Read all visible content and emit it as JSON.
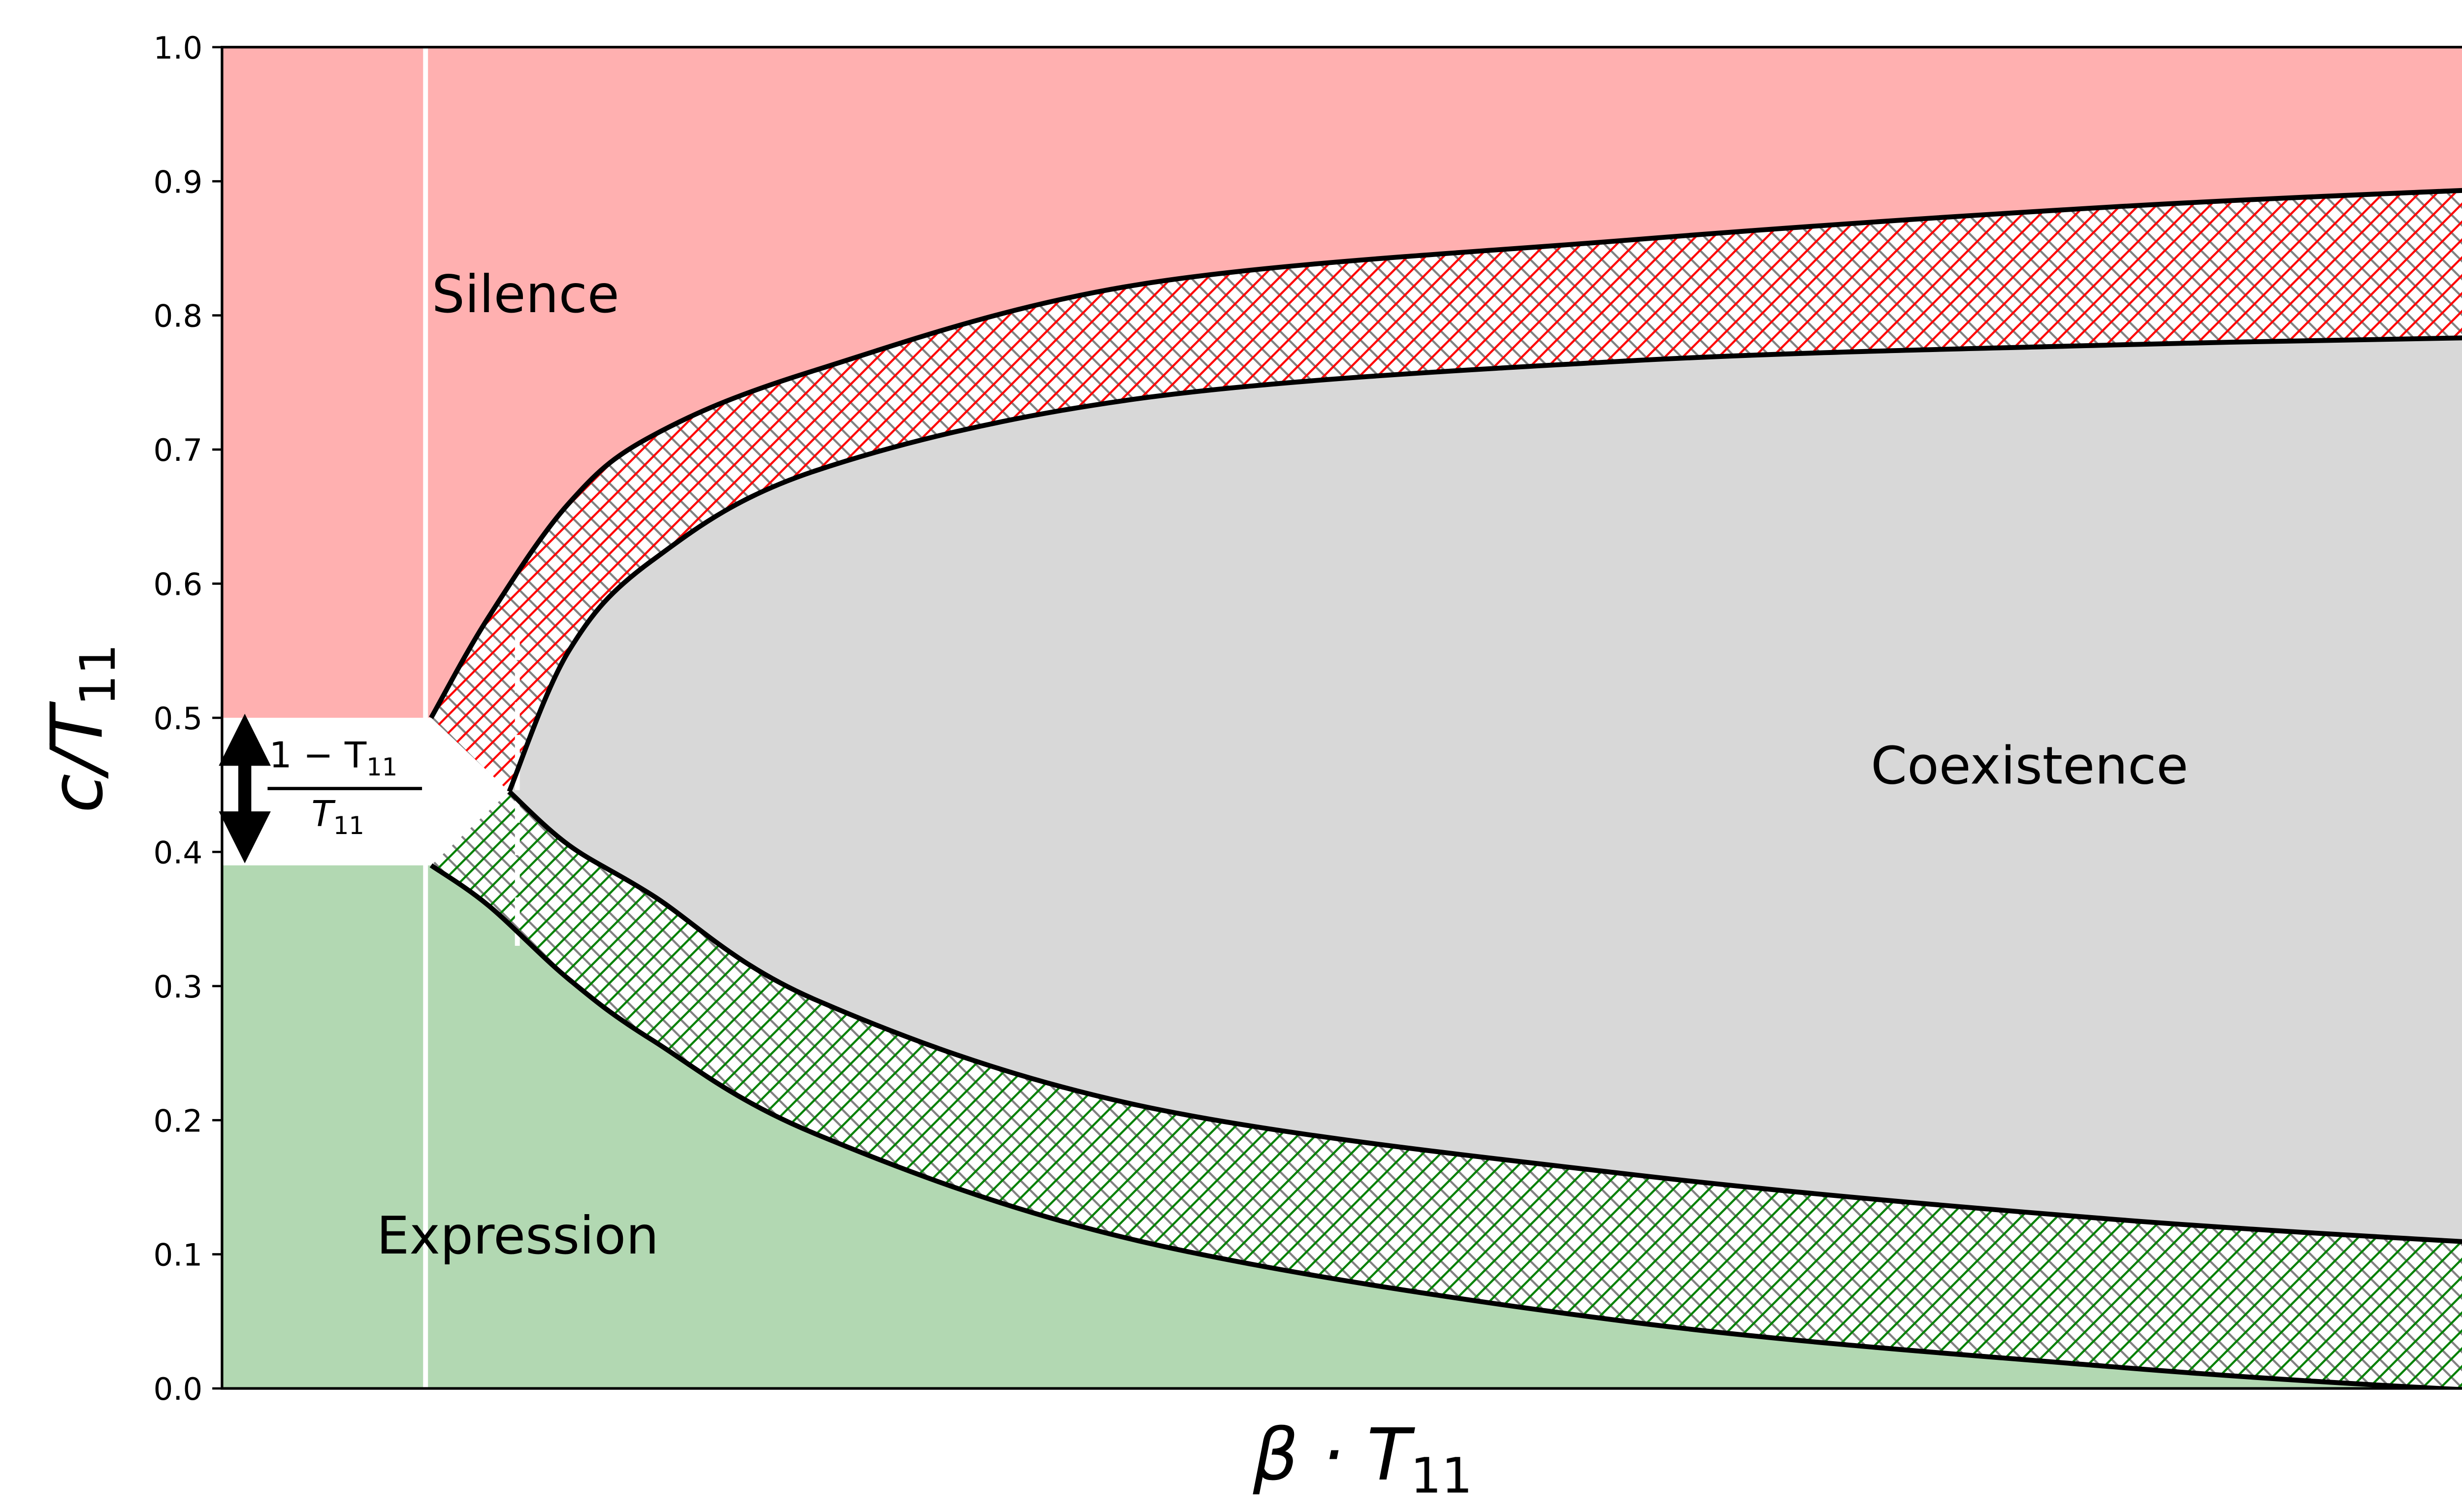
{
  "chart_data": {
    "type": "area",
    "title": "",
    "xlabel": "β · T",
    "xlabel_sub": "11",
    "ylabel": "c/T",
    "ylabel_sub": "11",
    "xlim": [
      0,
      1
    ],
    "ylim": [
      0,
      1
    ],
    "x_ticks_shown": false,
    "yticks": [
      "0.0",
      "0.1",
      "0.2",
      "0.3",
      "0.4",
      "0.5",
      "0.6",
      "0.7",
      "0.8",
      "0.9",
      "1.0"
    ],
    "grid": false,
    "colors": {
      "silence": "#ffb0b0",
      "expression": "#b2d8b2",
      "coexistence": "#d8d8d8",
      "hatch_upper": "#ff0000",
      "hatch_lower": "#008000",
      "hatch_common": "#808080",
      "boundary": "#000000"
    },
    "thresholds": {
      "silence_lower": 0.5,
      "expression_upper": 0.39,
      "threshold_x": 0.09
    },
    "curves": {
      "upper_outer": {
        "x": [
          0.091,
          0.116,
          0.151,
          0.187,
          0.258,
          0.399,
          0.611,
          0.824,
          1.0
        ],
        "y": [
          0.5,
          0.575,
          0.66,
          0.71,
          0.759,
          0.823,
          0.856,
          0.881,
          0.895
        ]
      },
      "upper_inner": {
        "x": [
          0.125,
          0.151,
          0.187,
          0.258,
          0.399,
          0.611,
          0.824,
          1.0
        ],
        "y": [
          0.445,
          0.55,
          0.617,
          0.684,
          0.738,
          0.766,
          0.778,
          0.784
        ]
      },
      "lower_inner": {
        "x": [
          0.125,
          0.151,
          0.187,
          0.258,
          0.399,
          0.611,
          0.824,
          1.0
        ],
        "y": [
          0.445,
          0.405,
          0.368,
          0.29,
          0.211,
          0.16,
          0.126,
          0.107
        ]
      },
      "lower_outer": {
        "x": [
          0.091,
          0.116,
          0.151,
          0.187,
          0.258,
          0.399,
          0.611,
          0.824,
          0.965,
          1.0
        ],
        "y": [
          0.39,
          0.36,
          0.305,
          0.26,
          0.19,
          0.11,
          0.05,
          0.016,
          0.0,
          0.0
        ]
      }
    },
    "annotations": {
      "silence": "Silence",
      "coexistence": "Coexistence",
      "expression": "Expression",
      "gap_numerator": "1 − T",
      "gap_denominator": "T",
      "gap_sub": "11"
    }
  }
}
